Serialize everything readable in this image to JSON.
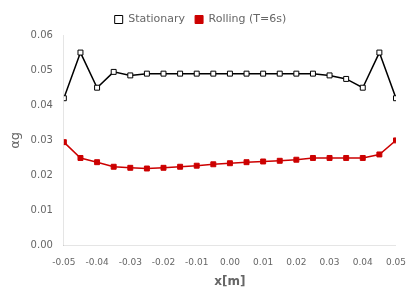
{
  "chart_data": {
    "type": "line",
    "x_label": "x[m]",
    "y_label": "αg",
    "x": [
      -0.05,
      -0.045,
      -0.04,
      -0.035,
      -0.03,
      -0.025,
      -0.02,
      -0.015,
      -0.01,
      -0.005,
      0.0,
      0.005,
      0.01,
      0.015,
      0.02,
      0.025,
      0.03,
      0.035,
      0.04,
      0.045,
      0.05
    ],
    "series": [
      {
        "name": "Stationary",
        "color": "#000000",
        "marker": "square-open",
        "line_style": "solid",
        "values": [
          0.042,
          0.055,
          0.045,
          0.0495,
          0.0485,
          0.049,
          0.049,
          0.049,
          0.049,
          0.049,
          0.049,
          0.049,
          0.049,
          0.049,
          0.049,
          0.049,
          0.0485,
          0.0475,
          0.045,
          0.055,
          0.042
        ]
      },
      {
        "name": "Rolling (T=6s)",
        "color": "#cc0000",
        "marker": "square",
        "line_style": "solid",
        "values": [
          0.0295,
          0.025,
          0.0238,
          0.0225,
          0.0222,
          0.022,
          0.0222,
          0.0225,
          0.0228,
          0.0232,
          0.0235,
          0.0238,
          0.024,
          0.0242,
          0.0245,
          0.025,
          0.025,
          0.025,
          0.025,
          0.026,
          0.03
        ]
      }
    ],
    "xlim": [
      -0.05,
      0.05
    ],
    "ylim": [
      0.0,
      0.06
    ],
    "xticks": [
      -0.05,
      -0.04,
      -0.03,
      -0.02,
      -0.01,
      {
        "value": 0.0,
        "label": "0.00"
      },
      0.01,
      0.02,
      0.03,
      0.04,
      0.05
    ],
    "yticks": [
      {
        "value": 0.0,
        "label": "0.00"
      },
      0.01,
      0.02,
      0.03,
      0.04,
      0.05,
      0.06
    ],
    "grid": false,
    "legend": "top"
  }
}
